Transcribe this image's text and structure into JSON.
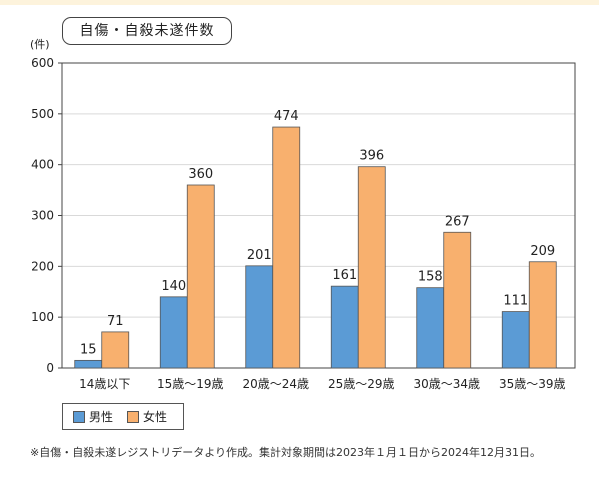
{
  "chart_data": {
    "type": "bar",
    "title": "自傷・自殺未遂件数",
    "ylabel": "(件)",
    "xlabel": "",
    "categories": [
      "14歳以下",
      "15歳～19歳",
      "20歳～24歳",
      "25歳～29歳",
      "30歳～34歳",
      "35歳～39歳"
    ],
    "series": [
      {
        "name": "男性",
        "values": [
          15,
          140,
          201,
          161,
          158,
          111
        ],
        "color": "#5b9bd5"
      },
      {
        "name": "女性",
        "values": [
          71,
          360,
          474,
          396,
          267,
          209
        ],
        "color": "#f8b06e"
      }
    ],
    "ylim": [
      0,
      600
    ],
    "yticks": [
      0,
      100,
      200,
      300,
      400,
      500,
      600
    ],
    "grid": true,
    "legend": "bottom-left"
  },
  "note": "※自傷・自殺未遂レジストリデータより作成。集計対象期間は2023年１月１日から2024年12月31日。"
}
